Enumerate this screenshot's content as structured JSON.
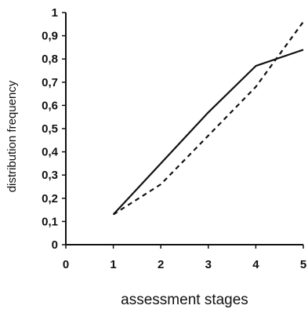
{
  "chart_data": {
    "type": "line",
    "xlabel": "assessment stages",
    "ylabel": "distribution frequency",
    "xlim": [
      0,
      5
    ],
    "ylim": [
      0,
      1
    ],
    "x_ticks": [
      "0",
      "1",
      "2",
      "3",
      "4",
      "5"
    ],
    "y_ticks": [
      "0",
      "0,1",
      "0,2",
      "0,3",
      "0,4",
      "0,5",
      "0,6",
      "0,7",
      "0,8",
      "0,9",
      "1"
    ],
    "grid": false,
    "legend": false,
    "series": [
      {
        "style": "solid",
        "color": "#111111",
        "x": [
          1,
          2,
          3,
          4,
          5
        ],
        "y": [
          0.13,
          0.35,
          0.57,
          0.77,
          0.84
        ]
      },
      {
        "style": "dashed",
        "color": "#111111",
        "x": [
          1,
          2,
          3,
          4,
          5
        ],
        "y": [
          0.13,
          0.26,
          0.47,
          0.68,
          0.96
        ]
      }
    ]
  }
}
